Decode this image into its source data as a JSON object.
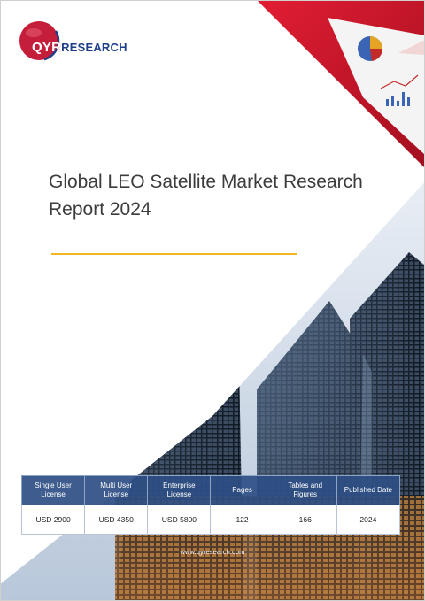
{
  "brand": {
    "logo_letters": "QYR",
    "logo_suffix": "ESEARCH",
    "colors": {
      "red": "#c41e3a",
      "navy": "#1f3f8a",
      "accent_gold": "#f2b71f"
    }
  },
  "report": {
    "title": "Global LEO Satellite Market Research Report 2024"
  },
  "table": {
    "headers": [
      "Single User License",
      "Multi User License",
      "Enterprise License",
      "Pages",
      "Tables and Figures",
      "Published Date"
    ],
    "values": [
      "USD 2900",
      "USD 4350",
      "USD 5800",
      "122",
      "166",
      "2024"
    ]
  },
  "footer": {
    "website": "www.qyresearch.com"
  }
}
